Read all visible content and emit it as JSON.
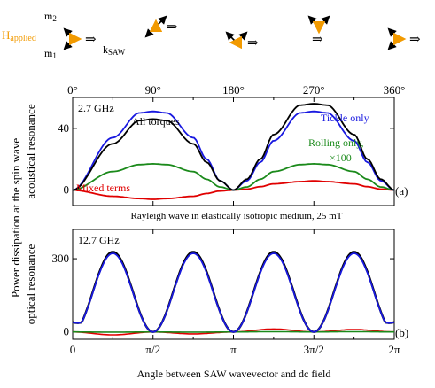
{
  "header": {
    "field_label": "H",
    "field_label_sub": "applied",
    "m2_label": "m",
    "m2_sub": "2",
    "m1_label": "m",
    "m1_sub": "1",
    "k_label": "k",
    "k_sub": "SAW",
    "colors": {
      "field": "#f29a00",
      "magnetization": "#000000",
      "wavevector": "#000000"
    },
    "field_angle_labels": [
      "0°",
      "90°",
      "180°",
      "270°",
      "360°"
    ]
  },
  "ylabel_line1": "Power dissipation at the spin wave",
  "chart_data": [
    {
      "type": "line",
      "id": "panel-a",
      "frequency_label": "2.7 GHz",
      "ylabel_line2": "acoustical resonance",
      "caption": "Rayleigh wave in elastically isotropic medium, 25 mT",
      "panel_label": "(a)",
      "x_top_ticks": [
        0,
        90,
        180,
        270,
        360
      ],
      "x_top_tick_labels": [
        "0°",
        "90°",
        "180°",
        "270°",
        "360°"
      ],
      "ylim": [
        -10,
        60
      ],
      "yticks": [
        0,
        40
      ],
      "ytick_labels": [
        "0",
        "40"
      ],
      "x": [
        0,
        45,
        75,
        90,
        105,
        135,
        150,
        165,
        180,
        195,
        210,
        225,
        255,
        270,
        285,
        315,
        330,
        345,
        360
      ],
      "series": [
        {
          "name": "All torques",
          "color": "#000000",
          "values": [
            0,
            30,
            45,
            46,
            45,
            30,
            18,
            6,
            0,
            7,
            20,
            36,
            55,
            56,
            55,
            36,
            20,
            7,
            0
          ]
        },
        {
          "name": "Tickle only",
          "color": "#1818e0",
          "values": [
            0,
            34,
            50,
            51,
            50,
            34,
            20,
            6,
            0,
            6,
            18,
            32,
            50,
            51,
            50,
            32,
            18,
            6,
            0
          ]
        },
        {
          "name": "Rolling only,",
          "name_line2": "×100",
          "color": "#1b8a1b",
          "values": [
            0,
            12,
            16.5,
            17,
            16.5,
            12,
            7,
            2,
            0,
            2,
            7,
            12,
            16.5,
            17,
            16.5,
            12,
            7,
            2,
            0
          ]
        },
        {
          "name": "Mixed terms",
          "color": "#e00000",
          "values": [
            0,
            -4,
            -5.5,
            -6,
            -5.5,
            -4,
            -2.2,
            -0.6,
            0,
            0.6,
            2.2,
            4,
            5.5,
            6,
            5.5,
            4,
            2.2,
            0.6,
            0
          ]
        }
      ]
    },
    {
      "type": "line",
      "id": "panel-b",
      "frequency_label": "12.7 GHz",
      "ylabel_line2": "optical resonance",
      "xlabel": "Angle between SAW wavevector and dc field",
      "panel_label": "(b)",
      "x_tick_labels": [
        "0",
        "π/2",
        "π",
        "3π/2",
        "2π"
      ],
      "ylim": [
        -30,
        420
      ],
      "yticks": [
        0,
        300
      ],
      "ytick_labels": [
        "0",
        "300"
      ],
      "x_deg": [
        0,
        45,
        90,
        135,
        180,
        225,
        270,
        315,
        360
      ],
      "series": [
        {
          "color": "#000000",
          "peak": 328,
          "baseline": 40,
          "model": "peaks at odd multiples of π/4"
        },
        {
          "color": "#1818e0",
          "peak": 322,
          "baseline": 40,
          "model": "peaks at odd multiples of π/4"
        },
        {
          "color": "#1b8a1b",
          "values_at_peaks": [
            -1,
            -1,
            1,
            1
          ]
        },
        {
          "color": "#e00000",
          "values_at_peaks": [
            -12,
            -8,
            12,
            10
          ]
        }
      ]
    }
  ]
}
